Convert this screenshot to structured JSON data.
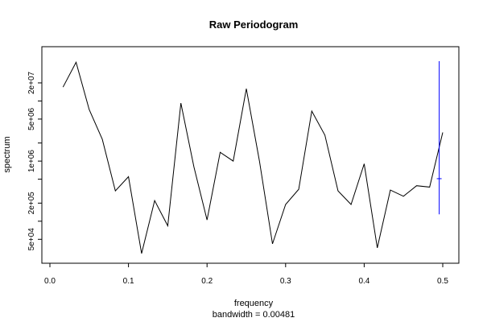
{
  "chart_data": {
    "type": "line",
    "title": "Raw Periodogram",
    "xlabel": "frequency",
    "sublabel": "bandwidth = 0.00481",
    "ylabel": "spectrum",
    "y_scale": "log",
    "xlim": [
      0,
      0.5
    ],
    "ylim": [
      20000,
      80000000
    ],
    "x_ticks": [
      0.0,
      0.1,
      0.2,
      0.3,
      0.4,
      0.5
    ],
    "x_tick_labels": [
      "0.0",
      "0.1",
      "0.2",
      "0.3",
      "0.4",
      "0.5"
    ],
    "y_ticks": [
      50000,
      200000,
      1000000,
      5000000,
      20000000
    ],
    "y_tick_labels": [
      "5e+04",
      "2e+05",
      "1e+06",
      "5e+06",
      "2e+07"
    ],
    "y_minor_ticks": [
      100000,
      500000,
      2000000,
      10000000
    ],
    "grid": false,
    "series": [
      {
        "color": "#000000",
        "x": [
          0.0167,
          0.0333,
          0.05,
          0.0667,
          0.0833,
          0.1,
          0.1167,
          0.1333,
          0.15,
          0.1667,
          0.1833,
          0.2,
          0.2167,
          0.2333,
          0.25,
          0.2667,
          0.2833,
          0.3,
          0.3167,
          0.3333,
          0.35,
          0.3667,
          0.3833,
          0.4,
          0.4167,
          0.4333,
          0.45,
          0.4667,
          0.4833,
          0.5
        ],
        "y": [
          17000000,
          44000000,
          7200000,
          2300000,
          320000,
          550000,
          29000,
          220000,
          84000,
          9200000,
          800000,
          105000,
          1400000,
          1000000,
          16000000,
          1000000,
          42000,
          190000,
          340000,
          6800000,
          2700000,
          320000,
          190000,
          900000,
          36000,
          330000,
          260000,
          390000,
          370000,
          3000000
        ]
      }
    ],
    "ci_bar": {
      "color": "#0000ff",
      "x": 0.4955,
      "lower": 130000,
      "upper": 46000000,
      "center": 510000
    }
  }
}
